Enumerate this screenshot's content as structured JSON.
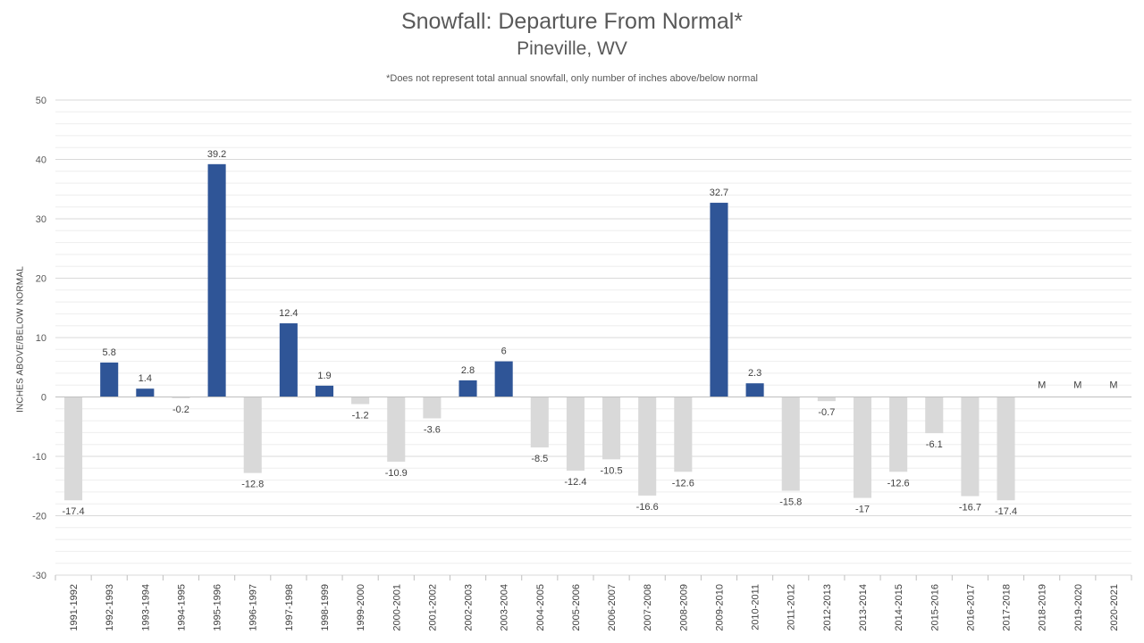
{
  "chart_data": {
    "type": "bar",
    "title": "Snowfall: Departure From Normal*",
    "subtitle": "Pineville, WV",
    "note": "*Does not represent  total annual snowfall, only number of inches above/below normal",
    "ylabel": "INCHES ABOVE/BELOW NORMAL",
    "xlabel": "",
    "ylim": [
      -30,
      50
    ],
    "yticks": [
      -30,
      -20,
      -10,
      0,
      10,
      20,
      30,
      40,
      50
    ],
    "categories": [
      "1991-1992",
      "1992-1993",
      "1993-1994",
      "1994-1995",
      "1995-1996",
      "1996-1997",
      "1997-1998",
      "1998-1999",
      "1999-2000",
      "2000-2001",
      "2001-2002",
      "2002-2003",
      "2003-2004",
      "2004-2005",
      "2005-2006",
      "2006-2007",
      "2007-2008",
      "2008-2009",
      "2009-2010",
      "2010-2011",
      "2011-2012",
      "2012-2013",
      "2013-2014",
      "2014-2015",
      "2015-2016",
      "2016-2017",
      "2017-2018",
      "2018-2019",
      "2019-2020",
      "2020-2021"
    ],
    "values": [
      -17.4,
      5.8,
      1.4,
      -0.2,
      39.2,
      -12.8,
      12.4,
      1.9,
      -1.2,
      -10.9,
      -3.6,
      2.8,
      6,
      -8.5,
      -12.4,
      -10.5,
      -16.6,
      -12.6,
      32.7,
      2.3,
      -15.8,
      -0.7,
      -17,
      -12.6,
      -6.1,
      -16.7,
      -17.4,
      null,
      null,
      null
    ],
    "labels": [
      "-17.4",
      "5.8",
      "1.4",
      "-0.2",
      "39.2",
      "-12.8",
      "12.4",
      "1.9",
      "-1.2",
      "-10.9",
      "-3.6",
      "2.8",
      "6",
      "-8.5",
      "-12.4",
      "-10.5",
      "-16.6",
      "-12.6",
      "32.7",
      "2.3",
      "-15.8",
      "-0.7",
      "-17",
      "-12.6",
      "-6.1",
      "-16.7",
      "-17.4",
      "M",
      "M",
      "M"
    ],
    "grid": true,
    "colors": {
      "positive": "#2f5597",
      "negative": "#d9d9d9",
      "gridline": "#d9d9d9",
      "axis": "#bfbfbf"
    }
  }
}
